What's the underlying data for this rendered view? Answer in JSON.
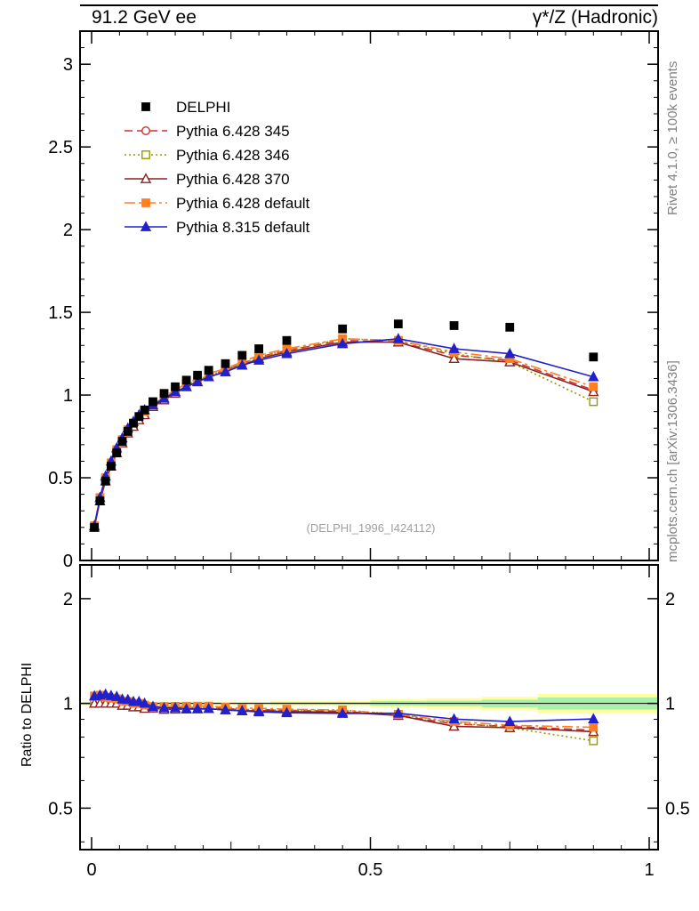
{
  "header": {
    "left": "91.2 GeV ee",
    "right": "γ*/Z (Hadronic)"
  },
  "side": {
    "top": "Rivet 4.1.0, ≥ 100k events",
    "bottom": "mcplots.cern.ch [arXiv:1306.3436]"
  },
  "main": {
    "watermark": "(DELPHI_1996_I424112)"
  },
  "ratio": {
    "ylabel": "Ratio to DELPHI"
  },
  "chart_data": {
    "type": "line",
    "title": "",
    "xlabel": "",
    "ylabel": "",
    "xlim": [
      0,
      1
    ],
    "ylim": [
      0,
      3.2
    ],
    "ratio_ylim": [
      0.38,
      2.5
    ],
    "ratio_scale": "log",
    "yerr_frac": 0.015,
    "x_ticks": {
      "major": [
        0,
        0.5,
        1
      ],
      "labels": [
        "0",
        "0.5",
        "1"
      ]
    },
    "y_ticks": {
      "major": [
        0,
        0.5,
        1,
        1.5,
        2,
        2.5,
        3
      ],
      "labels": [
        "0",
        "0.5",
        "1",
        "1.5",
        "2",
        "2.5",
        "3"
      ]
    },
    "ratio_ticks": {
      "major": [
        0.5,
        1,
        2
      ],
      "labels": [
        "0.5",
        "1",
        "2"
      ],
      "minor": [
        0.4,
        0.6,
        0.7,
        0.8,
        0.9
      ]
    },
    "x": [
      0.005,
      0.015,
      0.025,
      0.035,
      0.045,
      0.055,
      0.065,
      0.075,
      0.085,
      0.095,
      0.11,
      0.13,
      0.15,
      0.17,
      0.19,
      0.21,
      0.24,
      0.27,
      0.3,
      0.35,
      0.45,
      0.55,
      0.65,
      0.75,
      0.9
    ],
    "series": [
      {
        "name": "DELPHI",
        "role": "data",
        "color": "#000000",
        "marker": "square",
        "fill": "filled",
        "line": "none",
        "values": [
          0.2,
          0.36,
          0.48,
          0.57,
          0.65,
          0.72,
          0.78,
          0.83,
          0.87,
          0.91,
          0.96,
          1.01,
          1.05,
          1.09,
          1.12,
          1.15,
          1.19,
          1.24,
          1.28,
          1.33,
          1.4,
          1.43,
          1.42,
          1.41,
          1.23
        ]
      },
      {
        "name": "Pythia 6.428 345",
        "role": "mc",
        "color": "#cc3333",
        "marker": "circle",
        "fill": "open",
        "line": "dashed",
        "values": [
          0.2,
          0.37,
          0.49,
          0.58,
          0.66,
          0.72,
          0.78,
          0.82,
          0.86,
          0.89,
          0.93,
          0.98,
          1.02,
          1.06,
          1.09,
          1.12,
          1.15,
          1.19,
          1.23,
          1.27,
          1.33,
          1.32,
          1.24,
          1.21,
          1.03
        ]
      },
      {
        "name": "Pythia 6.428 346",
        "role": "mc",
        "color": "#999900",
        "marker": "square",
        "fill": "open",
        "line": "dotted",
        "values": [
          0.2,
          0.37,
          0.49,
          0.58,
          0.66,
          0.72,
          0.78,
          0.82,
          0.86,
          0.89,
          0.94,
          0.98,
          1.02,
          1.06,
          1.09,
          1.12,
          1.15,
          1.19,
          1.23,
          1.27,
          1.34,
          1.33,
          1.25,
          1.2,
          0.96
        ]
      },
      {
        "name": "Pythia 6.428 370",
        "role": "mc",
        "color": "#8b2222",
        "marker": "triangle",
        "fill": "open",
        "line": "solid",
        "values": [
          0.2,
          0.36,
          0.48,
          0.57,
          0.65,
          0.71,
          0.77,
          0.81,
          0.85,
          0.88,
          0.93,
          0.97,
          1.01,
          1.05,
          1.08,
          1.11,
          1.14,
          1.18,
          1.22,
          1.26,
          1.32,
          1.32,
          1.22,
          1.2,
          1.02
        ]
      },
      {
        "name": "Pythia 6.428 default",
        "role": "mc",
        "color": "#ff7f20",
        "marker": "square",
        "fill": "filled",
        "line": "dashdot",
        "values": [
          0.21,
          0.38,
          0.5,
          0.59,
          0.67,
          0.73,
          0.79,
          0.83,
          0.87,
          0.9,
          0.94,
          0.99,
          1.03,
          1.07,
          1.1,
          1.13,
          1.16,
          1.2,
          1.24,
          1.28,
          1.34,
          1.33,
          1.26,
          1.22,
          1.05
        ]
      },
      {
        "name": "Pythia 8.315 default",
        "role": "mc",
        "color": "#2020cc",
        "marker": "triangle",
        "fill": "filled",
        "line": "solid",
        "values": [
          0.21,
          0.38,
          0.51,
          0.6,
          0.68,
          0.74,
          0.8,
          0.84,
          0.88,
          0.91,
          0.94,
          0.98,
          1.02,
          1.05,
          1.08,
          1.11,
          1.14,
          1.18,
          1.21,
          1.25,
          1.31,
          1.34,
          1.28,
          1.25,
          1.11
        ]
      }
    ],
    "ratio_reference": 1,
    "band_colors": {
      "yellow": "#ffffa0",
      "green": "#aaf0aa"
    },
    "band_bins": [
      {
        "x0": 0.0,
        "x1": 0.32,
        "yellow": 0.012,
        "green": 0.006
      },
      {
        "x0": 0.32,
        "x1": 0.5,
        "yellow": 0.018,
        "green": 0.009
      },
      {
        "x0": 0.5,
        "x1": 0.6,
        "yellow": 0.028,
        "green": 0.015
      },
      {
        "x0": 0.6,
        "x1": 0.7,
        "yellow": 0.035,
        "green": 0.018
      },
      {
        "x0": 0.7,
        "x1": 0.8,
        "yellow": 0.045,
        "green": 0.025
      },
      {
        "x0": 0.8,
        "x1": 1.0,
        "yellow": 0.065,
        "green": 0.04
      }
    ],
    "legend_position": "top-left"
  }
}
